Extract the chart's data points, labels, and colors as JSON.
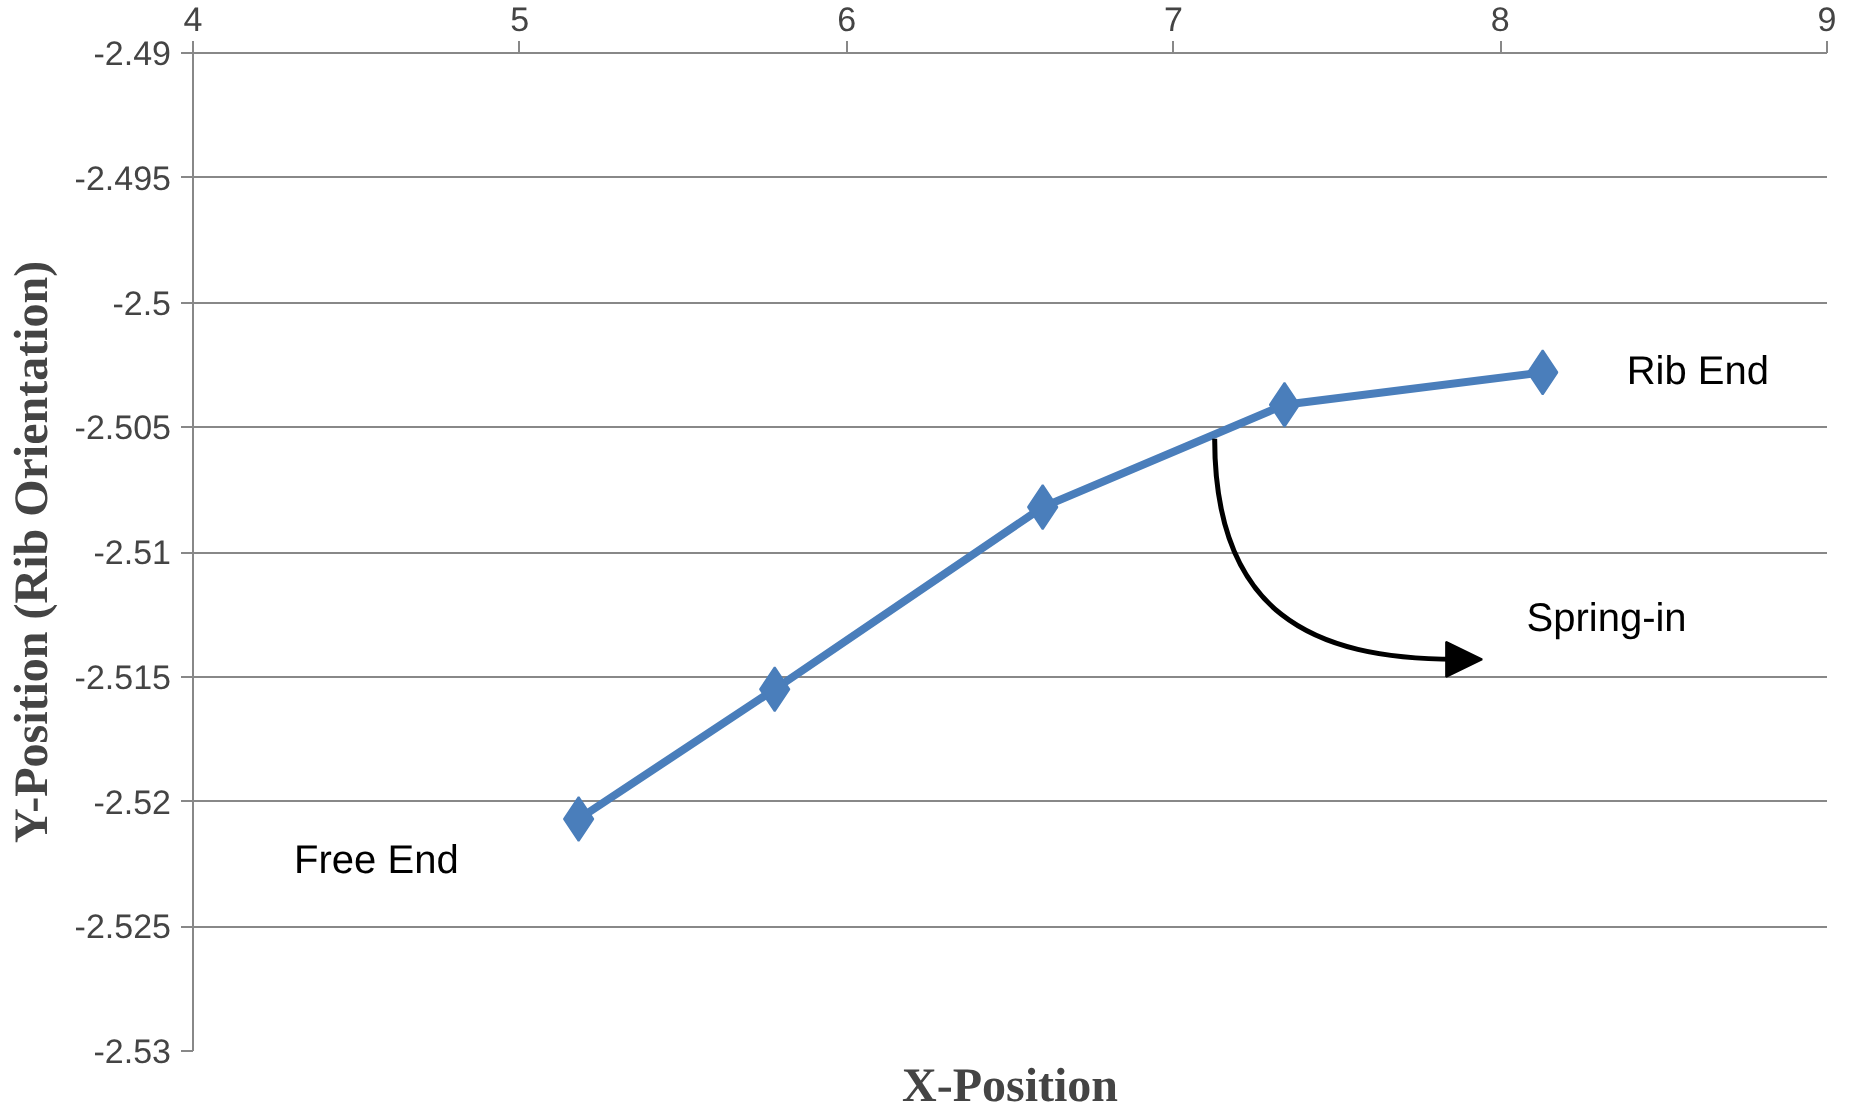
{
  "chart_data": {
    "type": "line",
    "xlabel": "X-Position",
    "ylabel": "Y-Position (Rib Orientation)",
    "x": [
      5.18,
      5.78,
      6.6,
      7.34,
      8.13
    ],
    "series": [
      {
        "color": "#4a7ebb",
        "values": [
          -2.5207,
          -2.5155,
          -2.5082,
          -2.5041,
          -2.5028
        ]
      }
    ],
    "xlim": [
      4,
      9
    ],
    "xticks": [
      4,
      5,
      6,
      7,
      8,
      9
    ],
    "ylim": [
      -2.53,
      -2.49
    ],
    "yticks": [
      -2.49,
      -2.495,
      -2.5,
      -2.505,
      -2.51,
      -2.515,
      -2.52,
      -2.525,
      -2.53
    ],
    "grid": "y",
    "marker": "diamond",
    "line_style": "solid",
    "annotations": [
      "Rib End",
      "Spring-in",
      "Free End"
    ]
  }
}
